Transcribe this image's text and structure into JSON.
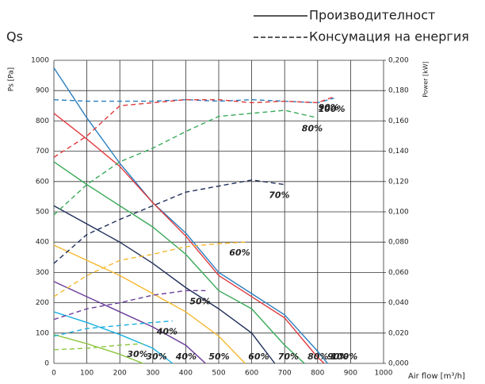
{
  "chart_data": {
    "type": "line",
    "title": "Qs",
    "x_label": "Air flow [m³/h]",
    "y_label": "Ps [Pa]",
    "y2_label": "Power [kW]",
    "legend": [
      {
        "label": "Производителност",
        "style": "solid"
      },
      {
        "label": "Консумация на енергия",
        "style": "dashed"
      }
    ],
    "xlim": [
      0,
      1000
    ],
    "xticks": [
      0,
      100,
      200,
      300,
      400,
      500,
      600,
      700,
      800,
      900,
      1000
    ],
    "ylim": [
      0,
      1000
    ],
    "yticks": [
      0,
      100,
      200,
      300,
      400,
      500,
      600,
      700,
      800,
      900,
      1000
    ],
    "y2lim": [
      0,
      0.2
    ],
    "y2ticks": [
      {
        "value": 0,
        "label": "0,000"
      },
      {
        "value": 0.02,
        "label": "0,020"
      },
      {
        "value": 0.04,
        "label": "0,040"
      },
      {
        "value": 0.06,
        "label": "0,060"
      },
      {
        "value": 0.08,
        "label": "0,080"
      },
      {
        "value": 0.1,
        "label": "0,100"
      },
      {
        "value": 0.12,
        "label": "0,120"
      },
      {
        "value": 0.14,
        "label": "0,140"
      },
      {
        "value": 0.16,
        "label": "0,160"
      },
      {
        "value": 0.18,
        "label": "0,180"
      },
      {
        "value": 0.2,
        "label": "0,200"
      }
    ],
    "grid": true,
    "series": [
      {
        "name": "100%",
        "color": "#2a7fc0",
        "style": "solid",
        "x": [
          0,
          100,
          200,
          300,
          400,
          500,
          600,
          700,
          800,
          830
        ],
        "values": [
          975,
          810,
          660,
          530,
          430,
          300,
          230,
          160,
          40,
          0
        ]
      },
      {
        "name": "90%",
        "color": "#e03a3e",
        "style": "solid",
        "x": [
          0,
          100,
          200,
          300,
          400,
          500,
          600,
          700,
          800,
          820
        ],
        "values": [
          825,
          740,
          650,
          530,
          420,
          290,
          220,
          150,
          20,
          0
        ]
      },
      {
        "name": "80%",
        "color": "#3aaa5a",
        "style": "solid",
        "x": [
          0,
          100,
          200,
          300,
          400,
          500,
          600,
          700,
          760
        ],
        "values": [
          665,
          590,
          520,
          450,
          360,
          240,
          180,
          60,
          0
        ]
      },
      {
        "name": "70%",
        "color": "#1f2f5a",
        "style": "solid",
        "x": [
          0,
          100,
          200,
          300,
          400,
          500,
          600,
          670
        ],
        "values": [
          520,
          460,
          400,
          330,
          250,
          180,
          100,
          0
        ]
      },
      {
        "name": "60%",
        "color": "#f5b82e",
        "style": "solid",
        "x": [
          0,
          100,
          200,
          300,
          400,
          500,
          580
        ],
        "values": [
          390,
          340,
          290,
          230,
          170,
          90,
          0
        ]
      },
      {
        "name": "50%",
        "color": "#6a3d9a",
        "style": "solid",
        "x": [
          0,
          100,
          200,
          300,
          400,
          460
        ],
        "values": [
          270,
          220,
          170,
          120,
          60,
          0
        ]
      },
      {
        "name": "40%",
        "color": "#1ab0e0",
        "style": "solid",
        "x": [
          0,
          100,
          200,
          300,
          360
        ],
        "values": [
          170,
          135,
          95,
          50,
          0
        ]
      },
      {
        "name": "30%",
        "color": "#8cc63f",
        "style": "solid",
        "x": [
          0,
          100,
          200,
          270
        ],
        "values": [
          95,
          65,
          30,
          0
        ]
      },
      {
        "name": "100%",
        "color": "#2a7fc0",
        "style": "dashed",
        "axis": "y2",
        "x": [
          0,
          100,
          200,
          300,
          400,
          500,
          600,
          700,
          800,
          850
        ],
        "values": [
          0.174,
          0.173,
          0.173,
          0.173,
          0.174,
          0.173,
          0.174,
          0.173,
          0.172,
          0.175
        ]
      },
      {
        "name": "90%",
        "color": "#e03a3e",
        "style": "dashed",
        "axis": "y2",
        "x": [
          0,
          100,
          200,
          300,
          400,
          500,
          600,
          700,
          800,
          850
        ],
        "values": [
          0.136,
          0.15,
          0.17,
          0.172,
          0.174,
          0.174,
          0.172,
          0.173,
          0.172,
          0.176
        ]
      },
      {
        "name": "80%",
        "color": "#3aaa5a",
        "style": "dashed",
        "axis": "y2",
        "x": [
          0,
          100,
          200,
          300,
          400,
          500,
          600,
          700,
          800
        ],
        "values": [
          0.098,
          0.118,
          0.133,
          0.142,
          0.153,
          0.163,
          0.165,
          0.167,
          0.162
        ]
      },
      {
        "name": "70%",
        "color": "#1f2f5a",
        "style": "dashed",
        "axis": "y2",
        "x": [
          0,
          100,
          200,
          300,
          400,
          500,
          600,
          700
        ],
        "values": [
          0.066,
          0.085,
          0.095,
          0.104,
          0.113,
          0.117,
          0.121,
          0.118
        ]
      },
      {
        "name": "60%",
        "color": "#f5b82e",
        "style": "dashed",
        "axis": "y2",
        "x": [
          0,
          100,
          200,
          300,
          400,
          500,
          580
        ],
        "values": [
          0.044,
          0.058,
          0.068,
          0.072,
          0.077,
          0.079,
          0.08
        ]
      },
      {
        "name": "50%",
        "color": "#6a3d9a",
        "style": "dashed",
        "axis": "y2",
        "x": [
          0,
          100,
          200,
          300,
          400,
          460
        ],
        "values": [
          0.029,
          0.036,
          0.04,
          0.045,
          0.048,
          0.048
        ]
      },
      {
        "name": "40%",
        "color": "#1ab0e0",
        "style": "dashed",
        "axis": "y2",
        "x": [
          0,
          100,
          200,
          300,
          360
        ],
        "values": [
          0.018,
          0.023,
          0.025,
          0.027,
          0.028
        ]
      },
      {
        "name": "30%",
        "color": "#8cc63f",
        "style": "dashed",
        "axis": "y2",
        "x": [
          0,
          100,
          200,
          270
        ],
        "values": [
          0.009,
          0.01,
          0.012,
          0.013
        ]
      }
    ]
  }
}
